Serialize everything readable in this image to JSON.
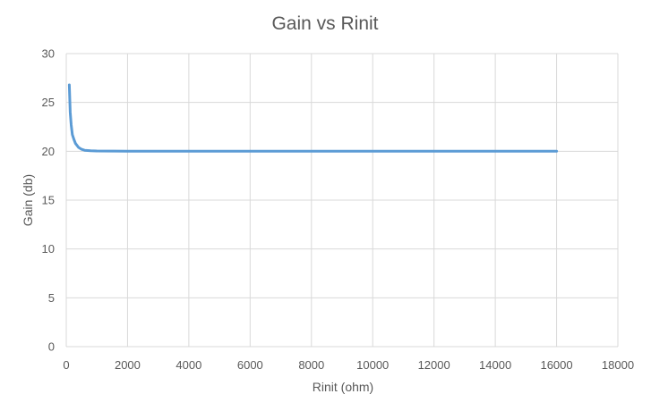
{
  "chart_data": {
    "type": "line",
    "title": "Gain vs Rinit",
    "xlabel": "Rinit (ohm)",
    "ylabel": "Gain (db)",
    "xlim": [
      0,
      18000
    ],
    "ylim": [
      0,
      30
    ],
    "xticks": [
      0,
      2000,
      4000,
      6000,
      8000,
      10000,
      12000,
      14000,
      16000,
      18000
    ],
    "yticks": [
      0,
      5,
      10,
      15,
      20,
      25,
      30
    ],
    "grid": true,
    "legend": "none",
    "series": [
      {
        "color": "#5b9bd5",
        "x": [
          100,
          130,
          160,
          200,
          250,
          300,
          400,
          500,
          600,
          800,
          1000,
          1500,
          2000,
          3000,
          4000,
          6000,
          8000,
          10000,
          12000,
          14000,
          16000
        ],
        "y": [
          26.8,
          24.0,
          22.7,
          21.7,
          21.2,
          20.8,
          20.4,
          20.2,
          20.1,
          20.05,
          20.03,
          20.02,
          20.01,
          20.0,
          20.0,
          20.0,
          20.0,
          20.0,
          20.0,
          20.0,
          20.0
        ]
      }
    ]
  }
}
